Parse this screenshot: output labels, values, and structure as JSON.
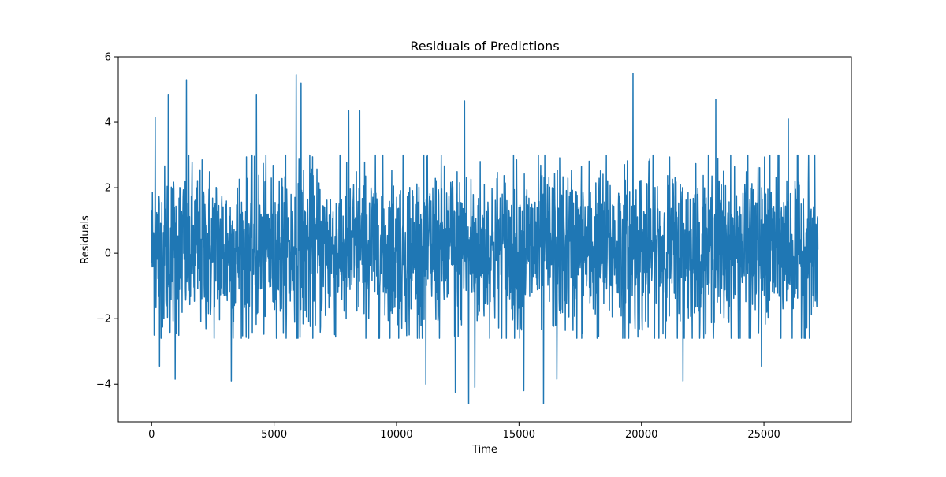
{
  "chart_data": {
    "type": "line",
    "title": "Residuals of Predictions",
    "xlabel": "Time",
    "ylabel": "Residuals",
    "xlim": [
      -1360,
      28570
    ],
    "ylim": [
      -5.15,
      6.0
    ],
    "xticks": [
      0,
      5000,
      10000,
      15000,
      20000,
      25000
    ],
    "yticks": [
      -4,
      -2,
      0,
      2,
      4,
      6
    ],
    "ytick_labels": [
      "−4",
      "−2",
      "0",
      "2",
      "4",
      "6"
    ],
    "grid": false,
    "legend": "none",
    "series": [
      {
        "color": "#1f77b4",
        "n_points": 27200,
        "x_start": 0,
        "x_end": 27200,
        "typical_range": [
          -2.2,
          2.4
        ],
        "peaks": [
          {
            "x": 150,
            "y": 4.15
          },
          {
            "x": 680,
            "y": 4.85
          },
          {
            "x": 1420,
            "y": 5.3
          },
          {
            "x": 4280,
            "y": 4.85
          },
          {
            "x": 5900,
            "y": 5.45
          },
          {
            "x": 6100,
            "y": 5.2
          },
          {
            "x": 8050,
            "y": 4.35
          },
          {
            "x": 8500,
            "y": 4.35
          },
          {
            "x": 12780,
            "y": 4.65
          },
          {
            "x": 19650,
            "y": 5.5
          },
          {
            "x": 23030,
            "y": 4.7
          },
          {
            "x": 26000,
            "y": 4.1
          }
        ],
        "troughs": [
          {
            "x": 320,
            "y": -3.45
          },
          {
            "x": 960,
            "y": -3.85
          },
          {
            "x": 3250,
            "y": -3.9
          },
          {
            "x": 11200,
            "y": -4.0
          },
          {
            "x": 12400,
            "y": -4.25
          },
          {
            "x": 12950,
            "y": -4.6
          },
          {
            "x": 13200,
            "y": -4.1
          },
          {
            "x": 15200,
            "y": -4.2
          },
          {
            "x": 16000,
            "y": -4.6
          },
          {
            "x": 16550,
            "y": -3.85
          },
          {
            "x": 21700,
            "y": -3.9
          },
          {
            "x": 24900,
            "y": -3.45
          }
        ]
      }
    ]
  }
}
